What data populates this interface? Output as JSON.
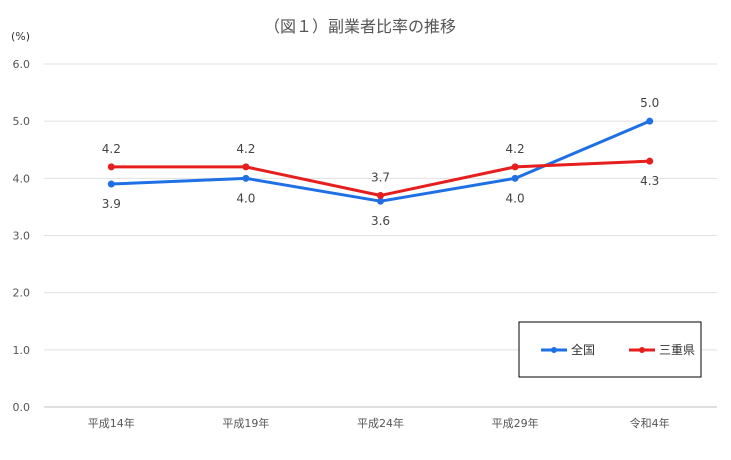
{
  "chart_data": {
    "type": "line",
    "title": "（図１）副業者比率の推移",
    "ylabel": "(%)",
    "categories": [
      "平成14年",
      "平成19年",
      "平成24年",
      "平成29年",
      "令和4年"
    ],
    "ylim": [
      0,
      6.0
    ],
    "yticks": [
      0.0,
      1.0,
      2.0,
      3.0,
      4.0,
      5.0,
      6.0
    ],
    "ytick_labels": [
      "0.0",
      "1.0",
      "2.0",
      "3.0",
      "4.0",
      "5.0",
      "6.0"
    ],
    "grid": true,
    "legend_position": "bottom-right",
    "series": [
      {
        "name": "全国",
        "color": "#1f6fe5",
        "values": [
          3.9,
          4.0,
          3.6,
          4.0,
          5.0
        ],
        "labels": [
          "3.9",
          "4.0",
          "3.6",
          "4.0",
          "5.0"
        ],
        "label_position": [
          "below",
          "below",
          "below",
          "below",
          "above"
        ]
      },
      {
        "name": "三重県",
        "color": "#e61e1e",
        "values": [
          4.2,
          4.2,
          3.7,
          4.2,
          4.3
        ],
        "labels": [
          "4.2",
          "4.2",
          "3.7",
          "4.2",
          "4.3"
        ],
        "label_position": [
          "above",
          "above",
          "above",
          "above",
          "below"
        ]
      }
    ]
  }
}
